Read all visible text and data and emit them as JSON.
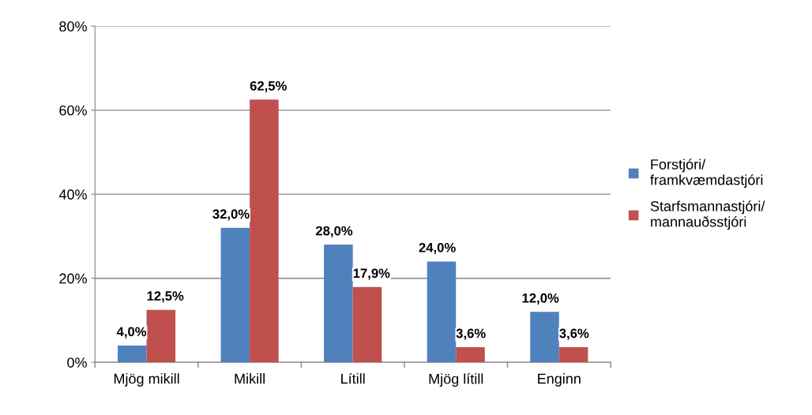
{
  "chart_data": {
    "type": "bar",
    "categories": [
      "Mjög mikill",
      "Mikill",
      "Lítill",
      "Mjög lítill",
      "Enginn"
    ],
    "series": [
      {
        "name": "Forstjóri/\nframkvæmdastjóri",
        "color": "#4f81bd",
        "values": [
          4.0,
          32.0,
          28.0,
          24.0,
          12.0
        ],
        "value_labels": [
          "4,0%",
          "32,0%",
          "28,0%",
          "24,0%",
          "12,0%"
        ]
      },
      {
        "name": "Starfsmannastjóri/\nmannauðsstjóri",
        "color": "#c0504d",
        "values": [
          12.5,
          62.5,
          17.9,
          3.6,
          3.6
        ],
        "value_labels": [
          "12,5%",
          "62,5%",
          "17,9%",
          "3,6%",
          "3,6%"
        ]
      }
    ],
    "ylim": [
      0,
      80
    ],
    "yticks": [
      {
        "value": 0,
        "label": "0%"
      },
      {
        "value": 20,
        "label": "20%"
      },
      {
        "value": 40,
        "label": "40%"
      },
      {
        "value": 60,
        "label": "60%"
      },
      {
        "value": 80,
        "label": "80%"
      }
    ],
    "grid": "y",
    "legend": "right"
  }
}
